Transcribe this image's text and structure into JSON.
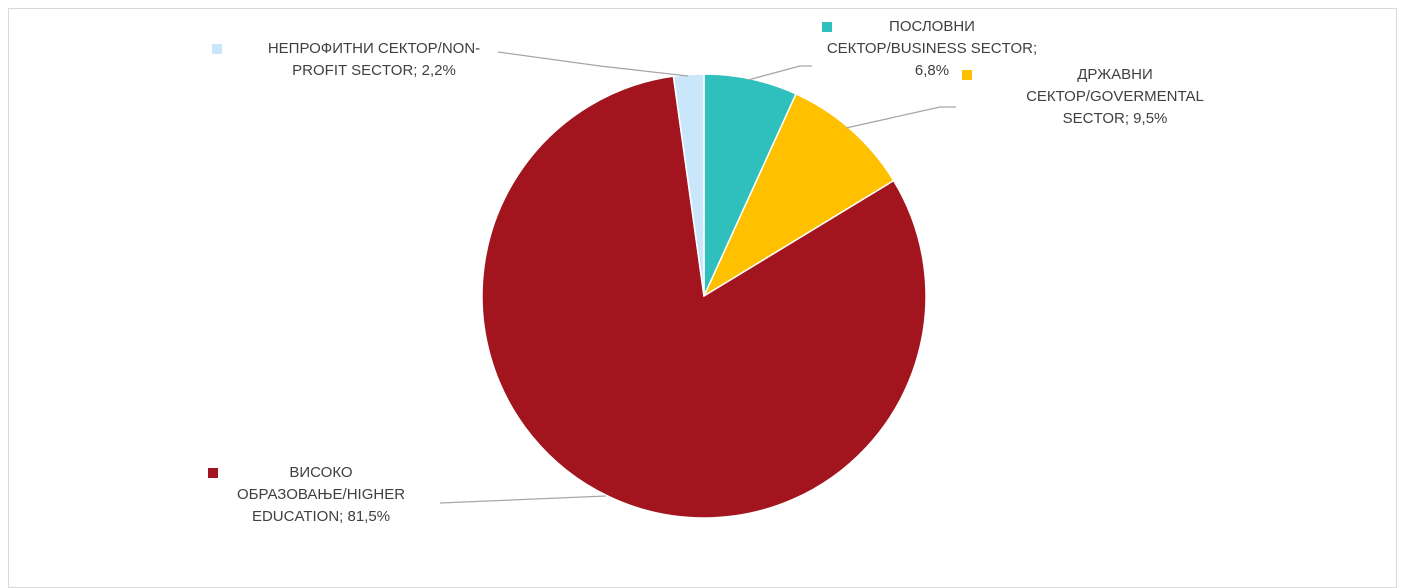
{
  "chart_data": {
    "type": "pie",
    "title": "",
    "categories": [
      "ПОСЛОВНИ СЕКТОР/BUSINESS SECTOR",
      "ДРЖАВНИ СЕКТОР/GOVERMENTAL SECTOR",
      "ВИСОКО ОБРАЗОВАЊЕ/HIGHER EDUCATION",
      "НЕПРОФИТНИ СЕКТОР/NON-PROFIT SECTOR"
    ],
    "values": [
      6.8,
      9.5,
      81.5,
      2.2
    ],
    "colors": [
      "#2fbfbd",
      "#ffc000",
      "#a2151f",
      "#c9e6fa"
    ],
    "legend": "none",
    "labels": {
      "business": {
        "line1": "ПОСЛОВНИ",
        "line2": "СЕКТОР/BUSINESS SECTOR;",
        "line3": "6,8%"
      },
      "governmental": {
        "line1": "ДРЖАВНИ",
        "line2": "СЕКТОР/GOVERMENTAL",
        "line3": "SECTOR; 9,5%"
      },
      "higher_education": {
        "line1": "ВИСОКО",
        "line2": "ОБРАЗОВАЊЕ/HIGHER",
        "line3": "EDUCATION; 81,5%"
      },
      "nonprofit": {
        "line1": "НЕПРОФИТНИ СЕКТОР/NON-",
        "line2": "PROFIT SECTOR; 2,2%"
      }
    }
  }
}
